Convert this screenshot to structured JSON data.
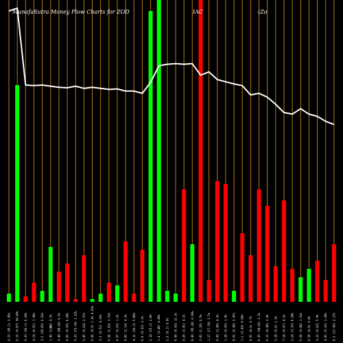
{
  "chart_data": {
    "type": "bar",
    "title_parts": [
      "MunafaSutra  Money Flow  Charts for ZOD",
      "IAC",
      "(Zo"
    ],
    "background": "#000000",
    "colors": {
      "up": "#00ff00",
      "down": "#ff0000",
      "grid": "#c07820",
      "line": "#ffffff",
      "text": "#ffffff"
    },
    "bars": [
      {
        "dir": "up",
        "value": 3
      },
      {
        "dir": "up",
        "value": 79
      },
      {
        "dir": "down",
        "value": 2
      },
      {
        "dir": "down",
        "value": 7
      },
      {
        "dir": "up",
        "value": 4
      },
      {
        "dir": "up",
        "value": 20
      },
      {
        "dir": "down",
        "value": 11
      },
      {
        "dir": "down",
        "value": 14
      },
      {
        "dir": "down",
        "value": 1
      },
      {
        "dir": "down",
        "value": 17
      },
      {
        "dir": "up",
        "value": 1
      },
      {
        "dir": "up",
        "value": 3
      },
      {
        "dir": "down",
        "value": 7
      },
      {
        "dir": "up",
        "value": 6
      },
      {
        "dir": "down",
        "value": 22
      },
      {
        "dir": "down",
        "value": 3
      },
      {
        "dir": "down",
        "value": 19
      },
      {
        "dir": "up",
        "value": 106
      },
      {
        "dir": "up",
        "value": 110
      },
      {
        "dir": "up",
        "value": 4
      },
      {
        "dir": "up",
        "value": 3
      },
      {
        "dir": "down",
        "value": 41
      },
      {
        "dir": "up",
        "value": 21
      },
      {
        "dir": "down",
        "value": 110
      },
      {
        "dir": "down",
        "value": 8
      },
      {
        "dir": "down",
        "value": 44
      },
      {
        "dir": "down",
        "value": 43
      },
      {
        "dir": "up",
        "value": 4
      },
      {
        "dir": "down",
        "value": 25
      },
      {
        "dir": "down",
        "value": 17
      },
      {
        "dir": "down",
        "value": 41
      },
      {
        "dir": "down",
        "value": 35
      },
      {
        "dir": "down",
        "value": 13
      },
      {
        "dir": "down",
        "value": 37
      },
      {
        "dir": "down",
        "value": 12
      },
      {
        "dir": "up",
        "value": 9
      },
      {
        "dir": "up",
        "value": 12
      },
      {
        "dir": "down",
        "value": 15
      },
      {
        "dir": "down",
        "value": 8
      },
      {
        "dir": "down",
        "value": 21
      }
    ],
    "price_line": [
      106,
      107,
      79,
      78.8,
      79,
      78.6,
      78.2,
      78,
      78.6,
      77.8,
      78.2,
      77.8,
      77.4,
      77.6,
      76.8,
      76.8,
      76,
      80,
      86,
      86.6,
      86.8,
      86.6,
      86.8,
      82.6,
      83.8,
      81,
      80.2,
      79.4,
      78.8,
      75.4,
      76,
      74.6,
      72,
      69,
      68.4,
      70.4,
      68.4,
      67.6,
      65.8,
      64.6
    ],
    "ylim": [
      0,
      110
    ],
    "x_tick_labels": [
      "0.23 (45.2) 3.45%",
      "0.19 (0.87) 58.49%",
      "0.33 (92.1) 6.18%",
      "4.14 (0.61) 1.36%",
      "3.2 (36.83) 0.22%",
      "1.45 (1.29) 4.3%",
      "3.48 (88.83) 6.5%",
      "0.83 (0.59) 6.54%",
      "0.33 (75.24) 1.32%",
      "5.45 (0.04) 2.57%",
      "0.06 (0.0) 1.3%",
      "3.3 (0.51) 4.19%",
      "0.56 (1.83) 3.72%",
      "0.97 (0.03) 1.2%",
      "0.85 (2.14) 4.3%",
      "4.12 (93.3) 5.86%",
      "6.9 (0.31) 3.1%",
      "2.14 (15.2) 2.8%",
      "1.4 (3.46) 4.48%",
      "2.5 (0.1) 0.9%",
      "6.08 (0.43) 12.1%",
      "0.26 (3.81) 4.1%",
      "8.49 (95.34) 0.39%",
      "2.81 (1.28) 0.5%",
      "1.27 (17.59) 3.7%",
      "0.09 (3.48) 4.3%",
      "1.34 (0.05) 1.9%",
      "8.01 (0.48) 3.47%",
      "1.1 (5.43) 0.96%",
      "0.91 (0.0) 0.7%",
      "6.35 (94.81) 2.1%",
      "6.12 (0.48) 3.9%",
      "2.28 (0.6) 1.3%",
      "7.18 (0.07) 4.2%",
      "2.24 (3.33) 6.18%",
      "5.04 (0.48) 1.31%",
      "0.26 (4.6) 0.4%",
      "3.23 (0.02) 5.9%",
      "4.81 (3.33) 1.34%",
      "6.5 (17.49) 2.17%"
    ],
    "extra_tick_labels": [
      "0%",
      "0.03%"
    ]
  }
}
